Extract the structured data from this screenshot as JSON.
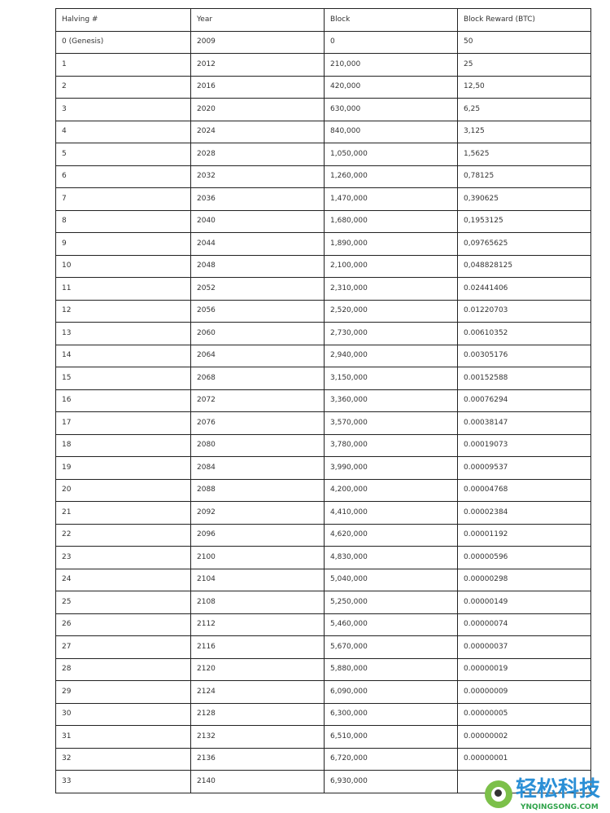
{
  "table": {
    "headers": [
      "Halving #",
      "Year",
      "Block",
      "Block Reward (BTC)"
    ],
    "rows": [
      [
        "0 (Genesis)",
        "2009",
        "0",
        "50"
      ],
      [
        "1",
        "2012",
        "210,000",
        "25"
      ],
      [
        "2",
        "2016",
        "420,000",
        "12,50"
      ],
      [
        "3",
        "2020",
        "630,000",
        "6,25"
      ],
      [
        "4",
        "2024",
        "840,000",
        "3,125"
      ],
      [
        "5",
        "2028",
        "1,050,000",
        "1,5625"
      ],
      [
        "6",
        "2032",
        "1,260,000",
        "0,78125"
      ],
      [
        "7",
        "2036",
        "1,470,000",
        "0,390625"
      ],
      [
        "8",
        "2040",
        "1,680,000",
        "0,1953125"
      ],
      [
        "9",
        "2044",
        "1,890,000",
        "0,09765625"
      ],
      [
        "10",
        "2048",
        "2,100,000",
        "0,048828125"
      ],
      [
        "11",
        "2052",
        "2,310,000",
        "0.02441406"
      ],
      [
        "12",
        "2056",
        "2,520,000",
        "0.01220703"
      ],
      [
        "13",
        "2060",
        "2,730,000",
        "0.00610352"
      ],
      [
        "14",
        "2064",
        "2,940,000",
        "0.00305176"
      ],
      [
        "15",
        "2068",
        "3,150,000",
        "0.00152588"
      ],
      [
        "16",
        "2072",
        "3,360,000",
        "0.00076294"
      ],
      [
        "17",
        "2076",
        "3,570,000",
        "0.00038147"
      ],
      [
        "18",
        "2080",
        "3,780,000",
        "0.00019073"
      ],
      [
        "19",
        "2084",
        "3,990,000",
        "0.00009537"
      ],
      [
        "20",
        "2088",
        "4,200,000",
        "0.00004768"
      ],
      [
        "21",
        "2092",
        "4,410,000",
        "0.00002384"
      ],
      [
        "22",
        "2096",
        "4,620,000",
        "0.00001192"
      ],
      [
        "23",
        "2100",
        "4,830,000",
        "0.00000596"
      ],
      [
        "24",
        "2104",
        "5,040,000",
        "0.00000298"
      ],
      [
        "25",
        "2108",
        "5,250,000",
        "0.00000149"
      ],
      [
        "26",
        "2112",
        "5,460,000",
        "0.00000074"
      ],
      [
        "27",
        "2116",
        "5,670,000",
        "0.00000037"
      ],
      [
        "28",
        "2120",
        "5,880,000",
        "0.00000019"
      ],
      [
        "29",
        "2124",
        "6,090,000",
        "0.00000009"
      ],
      [
        "30",
        "2128",
        "6,300,000",
        "0.00000005"
      ],
      [
        "31",
        "2132",
        "6,510,000",
        "0.00000002"
      ],
      [
        "32",
        "2136",
        "6,720,000",
        "0.00000001"
      ],
      [
        "33",
        "2140",
        "6,930,000",
        ""
      ]
    ]
  },
  "watermark": {
    "text": "轻松科技",
    "subtext": "YNQINGSONG.COM",
    "colors": {
      "text": "#2a8fd6",
      "icon": "#7cc04a",
      "sub": "#2fa34a"
    }
  }
}
